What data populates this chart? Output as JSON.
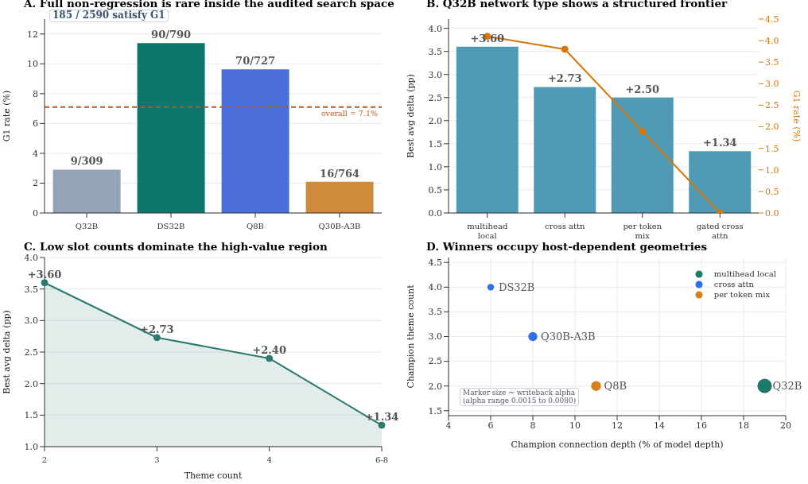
{
  "chart_data": [
    {
      "type": "bar",
      "title": "A. Full non-regression is rare inside the audited search space",
      "ylabel": "G1 rate (%)",
      "categories": [
        "Q32B",
        "DS32B",
        "Q8B",
        "Q30B-A3B"
      ],
      "values": [
        2.91,
        11.39,
        9.63,
        2.09
      ],
      "colors": [
        "#94a3b8",
        "#0f766e",
        "#4b6fdb",
        "#d08a3c"
      ],
      "value_labels": [
        "9/309",
        "90/790",
        "70/727",
        "16/764"
      ],
      "ylim": [
        0,
        13
      ],
      "yticks": [
        0,
        2,
        4,
        6,
        8,
        10,
        12
      ],
      "grid": "y",
      "ref_lines": [
        {
          "axis": "y",
          "value": 7.1,
          "label": "overall = 7.1%",
          "color": "#c2570c",
          "line_style": "dashed"
        }
      ],
      "annotations": [
        "185 / 2590 satisfy G1"
      ]
    },
    {
      "type": "bar",
      "title": "B. Q32B network type shows a structured frontier",
      "ylabel": "Best avg delta (pp)",
      "y2label": "G1 rate (%)",
      "categories": [
        "multihead local",
        "cross attn",
        "per token mix",
        "gated cross attn"
      ],
      "series": [
        {
          "color": "#4f9ab5",
          "values": [
            3.6,
            2.73,
            2.5,
            1.34
          ],
          "value_labels": [
            "+3.60",
            "+2.73",
            "+2.50",
            "+1.34"
          ]
        },
        {
          "type": "line",
          "axis": "y2",
          "color": "#d97706",
          "values": [
            4.1,
            3.8,
            1.9,
            0
          ]
        }
      ],
      "ylim": [
        0,
        4.2
      ],
      "yticks": [
        {
          "value": 0,
          "label": "0.0"
        },
        {
          "value": 0.5,
          "label": "0.5"
        },
        {
          "value": 1,
          "label": "1.0"
        },
        {
          "value": 1.5,
          "label": "1.5"
        },
        {
          "value": 2,
          "label": "2.0"
        },
        {
          "value": 2.5,
          "label": "2.5"
        },
        {
          "value": 3,
          "label": "3.0"
        },
        {
          "value": 3.5,
          "label": "3.5"
        },
        {
          "value": 4,
          "label": "4.0"
        }
      ],
      "y2lim": [
        0,
        4.5
      ],
      "y2ticks": [
        {
          "value": 0,
          "label": "0.0"
        },
        {
          "value": 0.5,
          "label": "0.5"
        },
        {
          "value": 1,
          "label": "1.0"
        },
        {
          "value": 1.5,
          "label": "1.5"
        },
        {
          "value": 2,
          "label": "2.0"
        },
        {
          "value": 2.5,
          "label": "2.5"
        },
        {
          "value": 3,
          "label": "3.0"
        },
        {
          "value": 3.5,
          "label": "3.5"
        },
        {
          "value": 4,
          "label": "4.0"
        },
        {
          "value": 4.5,
          "label": "4.5"
        }
      ],
      "grid": "y",
      "marker": "circle"
    },
    {
      "type": "area",
      "title": "C. Low slot counts dominate the high-value region",
      "xlabel": "Theme count",
      "ylabel": "Best avg delta (pp)",
      "categories": [
        "2",
        "3",
        "4",
        "6-8"
      ],
      "series": [
        {
          "color": "#2a7a70",
          "values": [
            3.6,
            2.73,
            2.4,
            1.34
          ],
          "value_labels": [
            "+3.60",
            "+2.73",
            "+2.40",
            "+1.34"
          ]
        }
      ],
      "ylim": [
        1,
        4
      ],
      "yticks": [
        {
          "value": 1,
          "label": "1.0"
        },
        {
          "value": 1.5,
          "label": "1.5"
        },
        {
          "value": 2,
          "label": "2.0"
        },
        {
          "value": 2.5,
          "label": "2.5"
        },
        {
          "value": 3,
          "label": "3.0"
        },
        {
          "value": 3.5,
          "label": "3.5"
        },
        {
          "value": 4,
          "label": "4.0"
        }
      ],
      "grid": "y",
      "marker": "circle"
    },
    {
      "type": "bubble",
      "title": "D. Winners occupy host-dependent geometries",
      "xlabel": "Champion connection depth (% of model depth)",
      "ylabel": "Champion theme count",
      "series": [
        {
          "name": "multihead local",
          "color": "#1f7a6e",
          "x": [
            19
          ],
          "values": [
            2
          ],
          "sizes": [
            1
          ]
        },
        {
          "name": "cross attn",
          "color": "#2f6fec",
          "x": [
            6,
            8
          ],
          "values": [
            4,
            3
          ],
          "sizes": [
            0.21,
            0.39
          ]
        },
        {
          "name": "per token mix",
          "color": "#d97f1a",
          "x": [
            11
          ],
          "values": [
            2
          ],
          "sizes": [
            0.47
          ]
        }
      ],
      "xlim": [
        4,
        20
      ],
      "xticks": [
        4,
        6,
        8,
        10,
        12,
        14,
        16,
        18,
        20
      ],
      "ylim": [
        1.4,
        4.6
      ],
      "yticks": [
        1.5,
        {
          "value": 2,
          "label": "2.0"
        },
        2.5,
        {
          "value": 3,
          "label": "3.0"
        },
        3.5,
        {
          "value": 4,
          "label": "4.0"
        },
        4.5
      ],
      "grid": true,
      "legend": "top right",
      "annotations": [
        {
          "text": "DS32B",
          "x": 6,
          "y": 4
        },
        {
          "text": "Q30B-A3B",
          "x": 8,
          "y": 3
        },
        {
          "text": "Q8B",
          "x": 11,
          "y": 2
        },
        {
          "text": "Q32B",
          "x": 19,
          "y": 2
        },
        "Marker size ~ writeback alpha\n(alpha range 0.0015 to 0.0080)"
      ]
    }
  ]
}
